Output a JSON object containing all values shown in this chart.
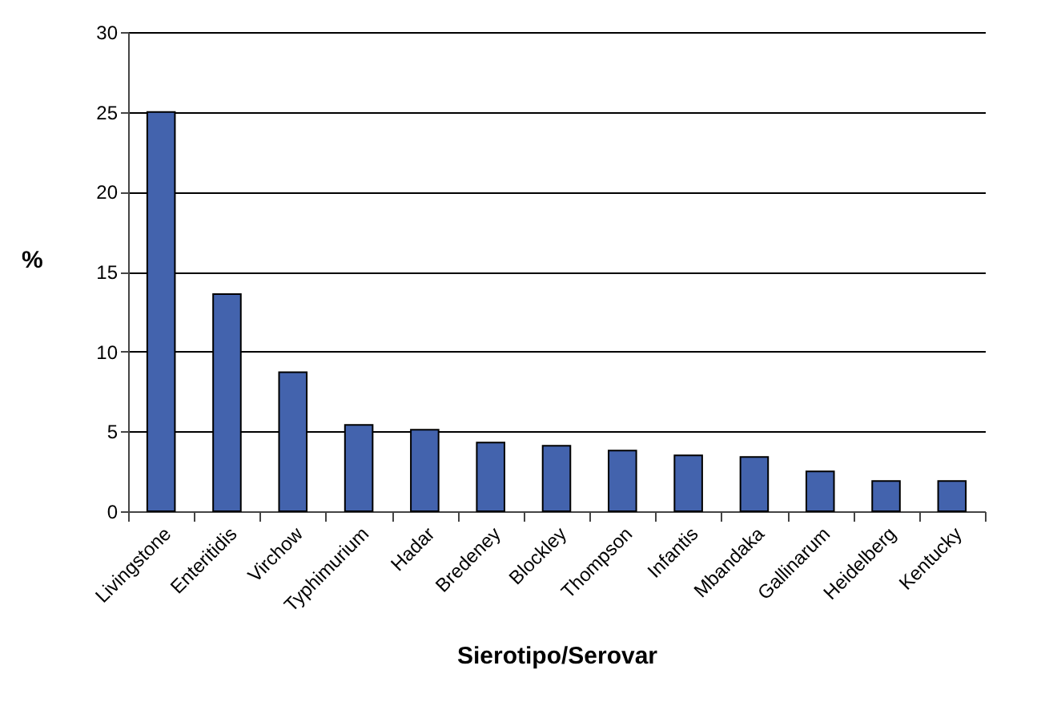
{
  "chart_data": {
    "type": "bar",
    "xlabel": "Sierotipo/Serovar",
    "ylabel": "%",
    "categories": [
      "Livingstone",
      "Enteritidis",
      "Virchow",
      "Typhimurium",
      "Hadar",
      "Bredeney",
      "Blockley",
      "Thompson",
      "Infantis",
      "Mbandaka",
      "Gallinarum",
      "Heidelberg",
      "Kentucky"
    ],
    "values": [
      25,
      13.6,
      8.7,
      5.4,
      5.1,
      4.3,
      4.1,
      3.8,
      3.5,
      3.4,
      2.5,
      1.9,
      1.9
    ],
    "color": "#4363ad",
    "ylim": [
      0,
      30
    ],
    "yticks": [
      0,
      5,
      10,
      15,
      20,
      25,
      30
    ],
    "grid": "y"
  }
}
